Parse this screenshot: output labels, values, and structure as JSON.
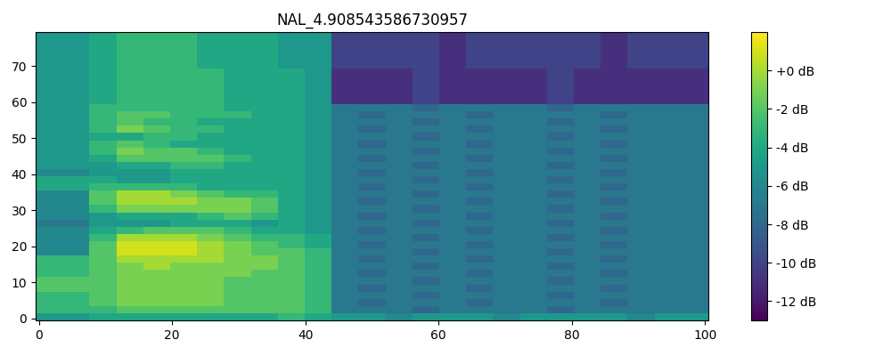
{
  "chart_data": {
    "type": "heatmap",
    "title": "NAL_4.908543586730957",
    "xlim": [
      -0.5,
      100.5
    ],
    "ylim": [
      -0.5,
      79.5
    ],
    "xticks": [
      0,
      20,
      40,
      60,
      80,
      100
    ],
    "yticks": [
      0,
      10,
      20,
      30,
      40,
      50,
      60,
      70
    ],
    "colorbar_range": [
      -13,
      2
    ],
    "colorbar_ticks": [
      {
        "value": 0,
        "label": "+0 dB"
      },
      {
        "value": -2,
        "label": "-2 dB"
      },
      {
        "value": -4,
        "label": "-4 dB"
      },
      {
        "value": -6,
        "label": "-6 dB"
      },
      {
        "value": -8,
        "label": "-8 dB"
      },
      {
        "value": -10,
        "label": "-10 dB"
      },
      {
        "value": -12,
        "label": "-12 dB"
      }
    ],
    "cells": [
      [
        -5,
        -5,
        -4,
        -4,
        -4,
        -4,
        -4,
        -4,
        -4,
        -3,
        -4,
        -5,
        -5,
        -6,
        -5,
        -5,
        -5,
        -6,
        -5,
        -5,
        -5,
        -5,
        -6,
        -5,
        -5
      ],
      [
        -3,
        -3,
        -3,
        -2,
        -2,
        -2,
        -2,
        -2,
        -2,
        -2,
        -3,
        -7,
        -7,
        -7,
        -8,
        -7,
        -7,
        -7,
        -7,
        -8,
        -7,
        -7,
        -7,
        -7,
        -7
      ],
      [
        -3,
        -3,
        -2,
        -1,
        -1,
        -1,
        -1,
        -2,
        -2,
        -2,
        -3,
        -7,
        -8,
        -7,
        -7,
        -7,
        -8,
        -7,
        -7,
        -7,
        -7,
        -8,
        -7,
        -7,
        -7
      ],
      [
        -3,
        -3,
        -2,
        -1,
        -1,
        -1,
        -1,
        -2,
        -2,
        -2,
        -3,
        -7,
        -7,
        -7,
        -8,
        -7,
        -7,
        -7,
        -7,
        -8,
        -7,
        -7,
        -7,
        -7,
        -7
      ],
      [
        -2,
        -2,
        -2,
        -1,
        -1,
        -1,
        -1,
        -2,
        -2,
        -2,
        -3,
        -7,
        -8,
        -7,
        -7,
        -7,
        -8,
        -7,
        -7,
        -7,
        -7,
        -8,
        -7,
        -7,
        -7
      ],
      [
        -2,
        -2,
        -2,
        -1,
        -1,
        -1,
        -1,
        -2,
        -2,
        -2,
        -3,
        -7,
        -7,
        -7,
        -8,
        -7,
        -7,
        -7,
        -7,
        -8,
        -7,
        -7,
        -7,
        -7,
        -7
      ],
      [
        -3,
        -3,
        -2,
        -1,
        -1,
        -1,
        -1,
        -1,
        -2,
        -2,
        -3,
        -7,
        -8,
        -7,
        -7,
        -7,
        -8,
        -7,
        -7,
        -7,
        -7,
        -8,
        -7,
        -7,
        -7
      ],
      [
        -3,
        -3,
        -2,
        -1,
        0,
        -1,
        -1,
        -1,
        -1,
        -2,
        -3,
        -7,
        -7,
        -7,
        -8,
        -7,
        -7,
        -7,
        -7,
        -8,
        -7,
        -7,
        -7,
        -7,
        -7
      ],
      [
        -3,
        -3,
        -2,
        0,
        0,
        0,
        0,
        -1,
        -1,
        -2,
        -3,
        -7,
        -8,
        -7,
        -7,
        -7,
        -8,
        -7,
        -7,
        -7,
        -7,
        -8,
        -7,
        -7,
        -7
      ],
      [
        -6,
        -6,
        -2,
        1,
        1,
        1,
        0,
        -1,
        -2,
        -2,
        -3,
        -7,
        -7,
        -7,
        -8,
        -7,
        -7,
        -7,
        -7,
        -8,
        -7,
        -7,
        -7,
        -7,
        -7
      ],
      [
        -6,
        -6,
        -2,
        1,
        1,
        1,
        0,
        -1,
        -2,
        -3,
        -4,
        -7,
        -8,
        -7,
        -7,
        -7,
        -8,
        -7,
        -7,
        -7,
        -7,
        -8,
        -7,
        -7,
        -7
      ],
      [
        -6,
        -6,
        -3,
        0,
        0,
        0,
        -1,
        -2,
        -3,
        -3,
        -4,
        -7,
        -7,
        -7,
        -8,
        -7,
        -7,
        -7,
        -7,
        -8,
        -7,
        -7,
        -7,
        -7,
        -7
      ],
      [
        -6,
        -6,
        -4,
        -3,
        -2,
        -2,
        -2,
        -3,
        -4,
        -4,
        -5,
        -7,
        -8,
        -7,
        -7,
        -7,
        -8,
        -7,
        -7,
        -7,
        -7,
        -8,
        -7,
        -7,
        -7
      ],
      [
        -7,
        -7,
        -5,
        -5,
        -5,
        -4,
        -4,
        -4,
        -5,
        -4,
        -5,
        -7,
        -7,
        -7,
        -8,
        -7,
        -7,
        -7,
        -7,
        -8,
        -7,
        -7,
        -7,
        -7,
        -7
      ],
      [
        -6,
        -6,
        -5,
        -4,
        -4,
        -4,
        -3,
        -2,
        -3,
        -4,
        -5,
        -7,
        -8,
        -7,
        -7,
        -7,
        -8,
        -7,
        -7,
        -7,
        -7,
        -8,
        -7,
        -7,
        -7
      ],
      [
        -6,
        -6,
        -3,
        -1,
        -1,
        -1,
        -1,
        -1,
        -2,
        -4,
        -5,
        -7,
        -7,
        -7,
        -8,
        -7,
        -7,
        -7,
        -7,
        -8,
        -7,
        -7,
        -7,
        -7,
        -7
      ],
      [
        -6,
        -6,
        -2,
        0,
        0,
        0,
        -1,
        -1,
        -2,
        -4,
        -5,
        -7,
        -8,
        -7,
        -7,
        -7,
        -8,
        -7,
        -7,
        -7,
        -7,
        -8,
        -7,
        -7,
        -7
      ],
      [
        -6,
        -6,
        -2,
        0,
        0,
        -1,
        -2,
        -3,
        -3,
        -4,
        -5,
        -7,
        -7,
        -7,
        -8,
        -7,
        -7,
        -7,
        -7,
        -8,
        -7,
        -7,
        -7,
        -7,
        -7
      ],
      [
        -4,
        -4,
        -3,
        -3,
        -3,
        -3,
        -4,
        -4,
        -4,
        -4,
        -5,
        -7,
        -8,
        -7,
        -7,
        -7,
        -8,
        -7,
        -7,
        -7,
        -7,
        -8,
        -7,
        -7,
        -7
      ],
      [
        -4,
        -4,
        -4,
        -5,
        -5,
        -4,
        -4,
        -4,
        -4,
        -4,
        -5,
        -7,
        -7,
        -7,
        -8,
        -7,
        -7,
        -7,
        -7,
        -8,
        -7,
        -7,
        -7,
        -7,
        -7
      ],
      [
        -6,
        -6,
        -5,
        -5,
        -5,
        -4,
        -4,
        -4,
        -4,
        -4,
        -5,
        -7,
        -8,
        -7,
        -7,
        -7,
        -8,
        -7,
        -7,
        -7,
        -7,
        -8,
        -7,
        -7,
        -7
      ],
      [
        -5,
        -5,
        -5,
        -4,
        -4,
        -3,
        -3,
        -4,
        -4,
        -4,
        -5,
        -7,
        -7,
        -7,
        -8,
        -7,
        -7,
        -7,
        -7,
        -8,
        -7,
        -7,
        -7,
        -7,
        -7
      ],
      [
        -5,
        -5,
        -4,
        -2,
        -2,
        -2,
        -2,
        -3,
        -4,
        -4,
        -5,
        -7,
        -8,
        -7,
        -7,
        -7,
        -8,
        -7,
        -7,
        -7,
        -7,
        -8,
        -7,
        -7,
        -7
      ],
      [
        -5,
        -5,
        -3,
        -1,
        -2,
        -2,
        -3,
        -4,
        -4,
        -4,
        -5,
        -7,
        -7,
        -7,
        -8,
        -7,
        -7,
        -7,
        -7,
        -8,
        -7,
        -7,
        -7,
        -7,
        -7
      ],
      [
        -5,
        -5,
        -3,
        -2,
        -3,
        -4,
        -4,
        -4,
        -4,
        -4,
        -5,
        -7,
        -8,
        -7,
        -7,
        -7,
        -8,
        -7,
        -7,
        -7,
        -7,
        -8,
        -7,
        -7,
        -7
      ],
      [
        -5,
        -5,
        -4,
        -4,
        -3,
        -3,
        -4,
        -4,
        -4,
        -4,
        -5,
        -7,
        -7,
        -7,
        -8,
        -7,
        -7,
        -7,
        -7,
        -8,
        -7,
        -7,
        -7,
        -7,
        -7
      ],
      [
        -5,
        -5,
        -3,
        -1,
        -2,
        -3,
        -3,
        -4,
        -4,
        -4,
        -5,
        -7,
        -8,
        -7,
        -7,
        -7,
        -8,
        -7,
        -7,
        -7,
        -7,
        -8,
        -7,
        -7,
        -7
      ],
      [
        -5,
        -5,
        -3,
        -2,
        -3,
        -3,
        -4,
        -4,
        -4,
        -4,
        -5,
        -7,
        -7,
        -7,
        -8,
        -7,
        -7,
        -7,
        -7,
        -8,
        -7,
        -7,
        -7,
        -7,
        -7
      ],
      [
        -5,
        -5,
        -3,
        -2,
        -2,
        -3,
        -3,
        -3,
        -4,
        -4,
        -5,
        -7,
        -8,
        -7,
        -7,
        -7,
        -8,
        -7,
        -7,
        -7,
        -7,
        -8,
        -7,
        -7,
        -7
      ],
      [
        -5,
        -5,
        -3,
        -3,
        -3,
        -3,
        -3,
        -4,
        -4,
        -4,
        -5,
        -7,
        -7,
        -7,
        -8,
        -7,
        -7,
        -7,
        -7,
        -8,
        -7,
        -7,
        -7,
        -7,
        -7
      ],
      [
        -5,
        -5,
        -4,
        -3,
        -3,
        -3,
        -3,
        -4,
        -4,
        -4,
        -5,
        -11,
        -11,
        -11,
        -10,
        -11,
        -11,
        -11,
        -11,
        -10,
        -11,
        -11,
        -11,
        -11,
        -11
      ],
      [
        -5,
        -5,
        -4,
        -3,
        -3,
        -3,
        -3,
        -4,
        -4,
        -4,
        -5,
        -11,
        -11,
        -11,
        -10,
        -11,
        -11,
        -11,
        -11,
        -10,
        -11,
        -11,
        -11,
        -11,
        -11
      ],
      [
        -5,
        -5,
        -4,
        -3,
        -3,
        -3,
        -3,
        -4,
        -4,
        -4,
        -5,
        -11,
        -11,
        -11,
        -10,
        -11,
        -11,
        -11,
        -11,
        -10,
        -11,
        -11,
        -11,
        -11,
        -11
      ],
      [
        -5,
        -5,
        -4,
        -3,
        -3,
        -3,
        -3,
        -4,
        -4,
        -4,
        -5,
        -11,
        -11,
        -11,
        -10,
        -11,
        -11,
        -11,
        -11,
        -10,
        -11,
        -11,
        -11,
        -11,
        -11
      ],
      [
        -5,
        -5,
        -4,
        -3,
        -3,
        -3,
        -3,
        -4,
        -4,
        -4,
        -5,
        -11,
        -11,
        -11,
        -10,
        -11,
        -11,
        -11,
        -11,
        -10,
        -11,
        -11,
        -11,
        -11,
        -11
      ],
      [
        -5,
        -5,
        -4,
        -3,
        -3,
        -3,
        -4,
        -4,
        -4,
        -5,
        -5,
        -10,
        -10,
        -10,
        -10,
        -11,
        -10,
        -10,
        -10,
        -10,
        -10,
        -11,
        -10,
        -10,
        -10
      ],
      [
        -5,
        -5,
        -4,
        -3,
        -3,
        -3,
        -4,
        -4,
        -4,
        -5,
        -5,
        -10,
        -10,
        -10,
        -10,
        -11,
        -10,
        -10,
        -10,
        -10,
        -10,
        -11,
        -10,
        -10,
        -10
      ],
      [
        -5,
        -5,
        -4,
        -3,
        -3,
        -3,
        -4,
        -4,
        -4,
        -5,
        -5,
        -10,
        -10,
        -10,
        -10,
        -11,
        -10,
        -10,
        -10,
        -10,
        -10,
        -11,
        -10,
        -10,
        -10
      ],
      [
        -5,
        -5,
        -4,
        -3,
        -3,
        -3,
        -4,
        -4,
        -4,
        -5,
        -5,
        -10,
        -10,
        -10,
        -10,
        -11,
        -10,
        -10,
        -10,
        -10,
        -10,
        -11,
        -10,
        -10,
        -10
      ],
      [
        -5,
        -5,
        -4,
        -3,
        -3,
        -3,
        -4,
        -4,
        -4,
        -5,
        -5,
        -10,
        -10,
        -10,
        -10,
        -11,
        -10,
        -10,
        -10,
        -10,
        -10,
        -11,
        -10,
        -10,
        -10
      ]
    ]
  }
}
